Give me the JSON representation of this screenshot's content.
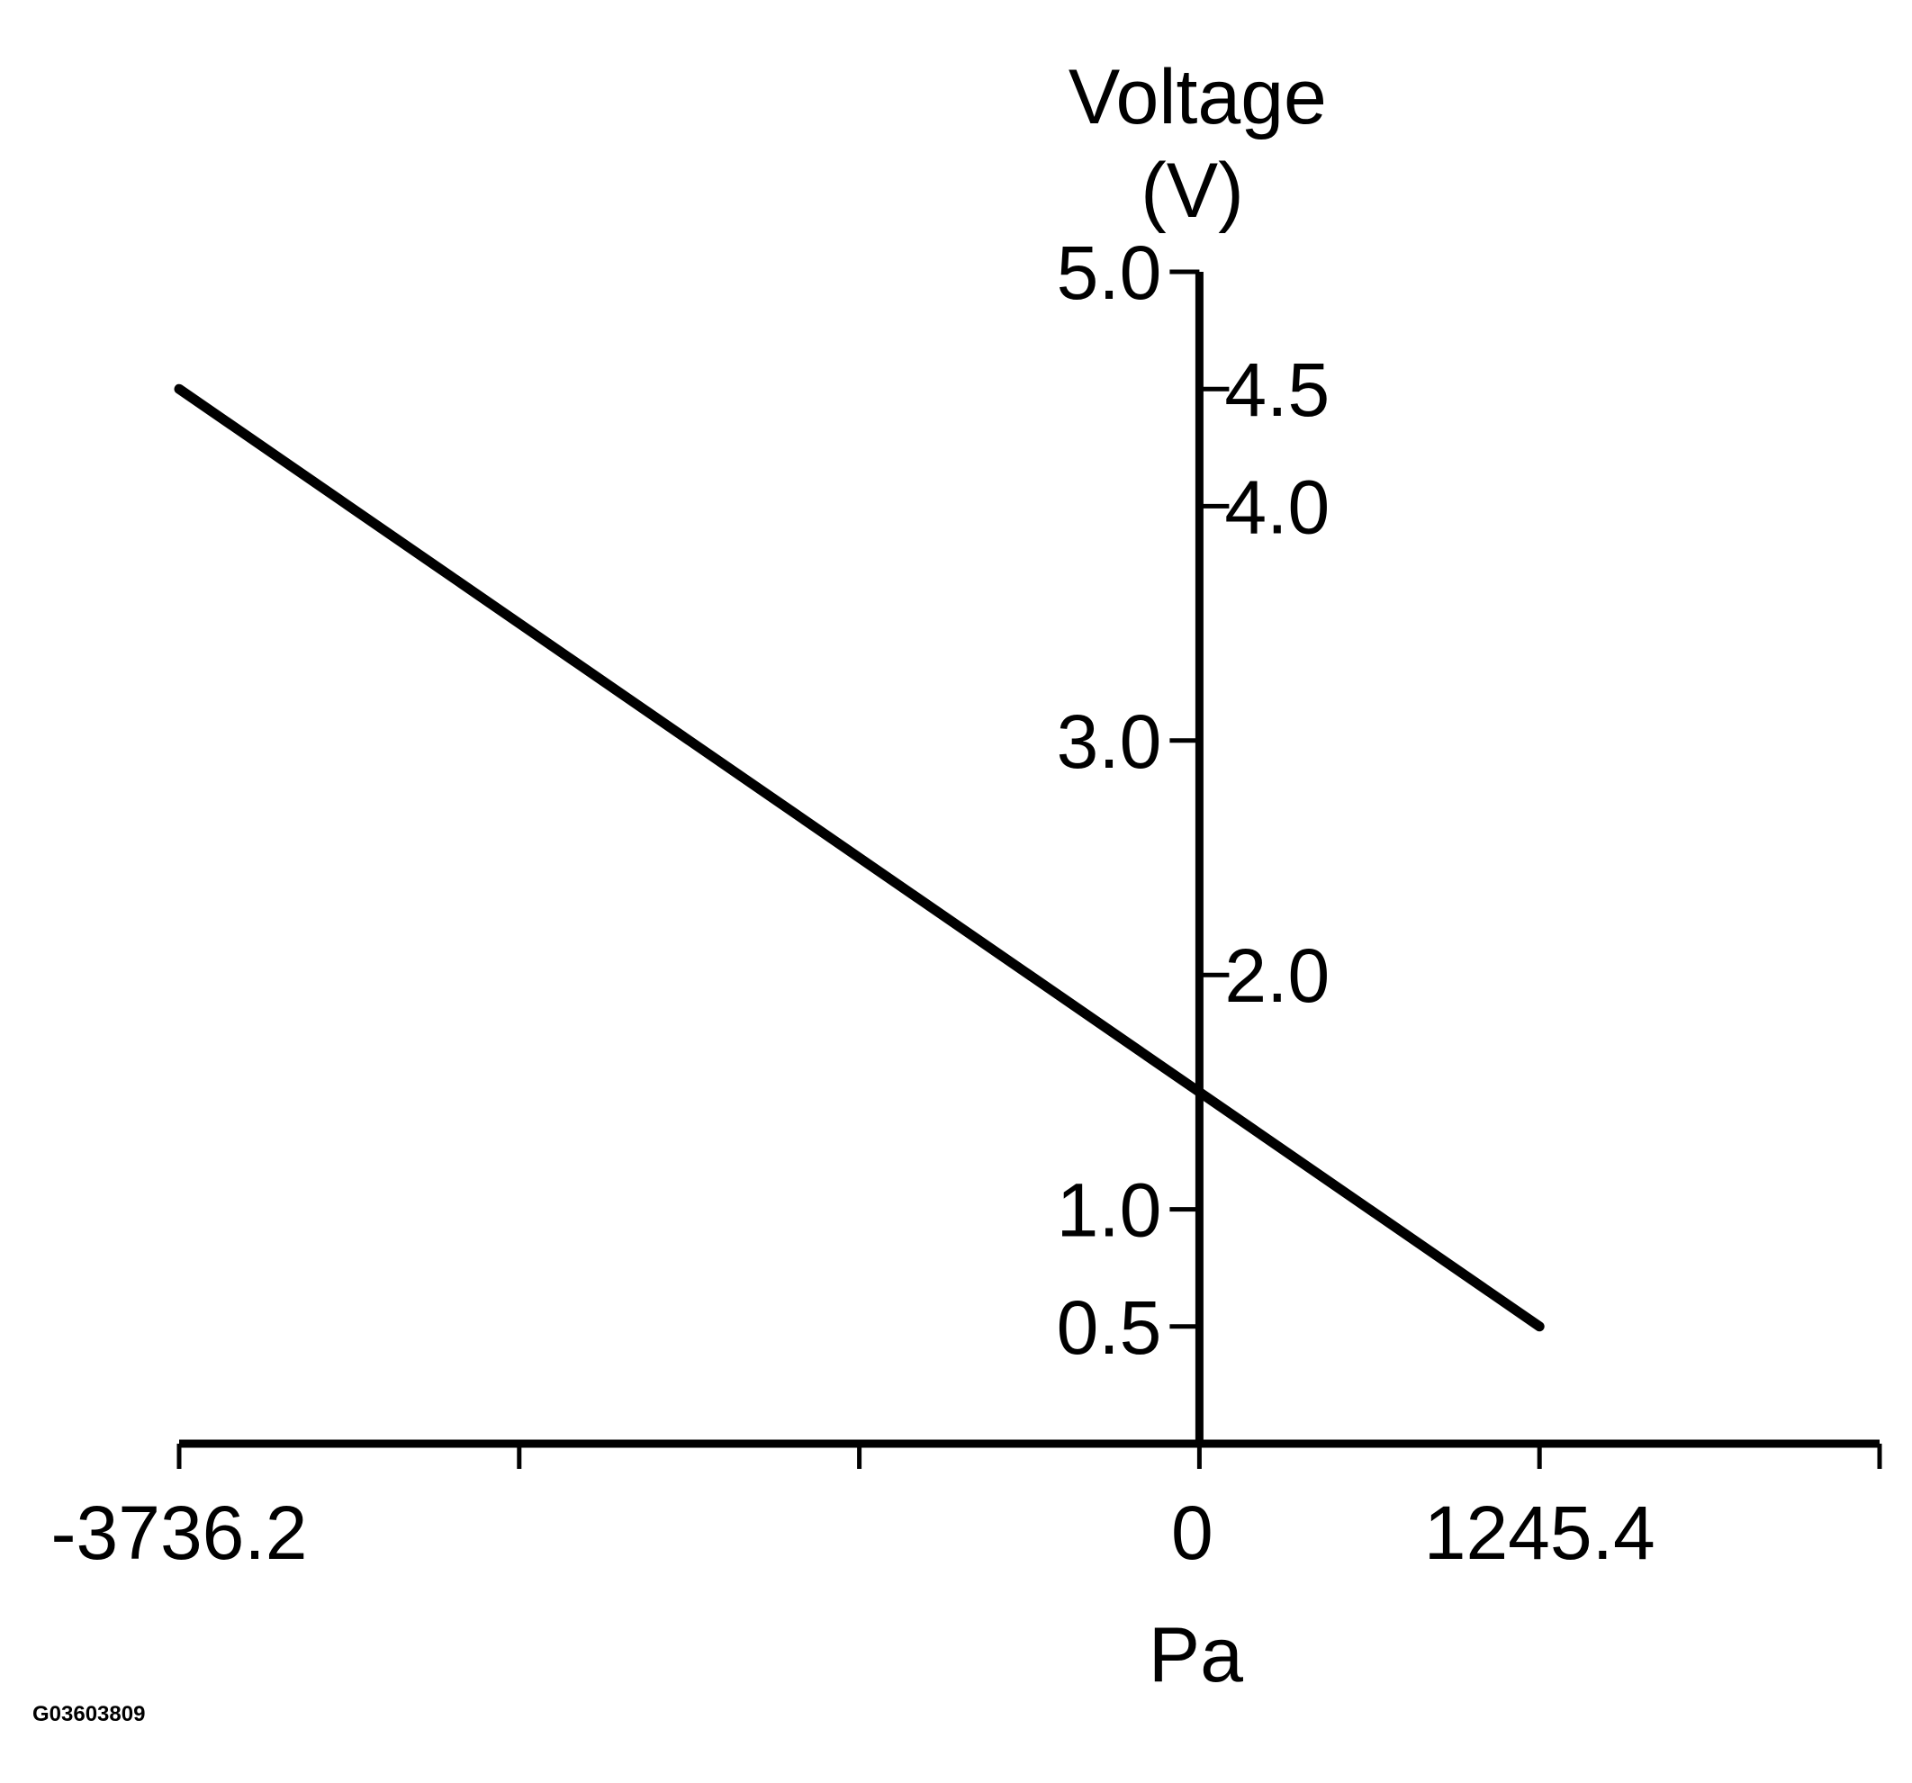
{
  "chart_data": {
    "type": "line",
    "title": "",
    "ylabel": [
      "Voltage",
      "(V)"
    ],
    "xlabel": "Pa",
    "x_ticks": [
      {
        "value": -3736.2,
        "label": "-3736.2"
      },
      {
        "value": -2490.8,
        "label": ""
      },
      {
        "value": -1245.4,
        "label": ""
      },
      {
        "value": 0,
        "label": "0"
      },
      {
        "value": 1245.4,
        "label": "1245.4"
      },
      {
        "value": 2490.8,
        "label": ""
      }
    ],
    "y_ticks": [
      {
        "value": 0.5,
        "label": "0.5",
        "side": "left"
      },
      {
        "value": 1.0,
        "label": "1.0",
        "side": "left"
      },
      {
        "value": 2.0,
        "label": "2.0",
        "side": "right"
      },
      {
        "value": 3.0,
        "label": "3.0",
        "side": "left"
      },
      {
        "value": 4.0,
        "label": "4.0",
        "side": "right"
      },
      {
        "value": 4.5,
        "label": "4.5",
        "side": "right"
      },
      {
        "value": 5.0,
        "label": "5.0",
        "side": "left"
      }
    ],
    "xlim": [
      -3736.2,
      2490.8
    ],
    "ylim": [
      0,
      5.0
    ],
    "grid": false,
    "legend": "none",
    "series": [
      {
        "x": [
          -3736.2,
          0,
          1245.4
        ],
        "y": [
          4.5,
          1.5,
          0.5
        ]
      }
    ]
  },
  "figure_id": "G03603809"
}
